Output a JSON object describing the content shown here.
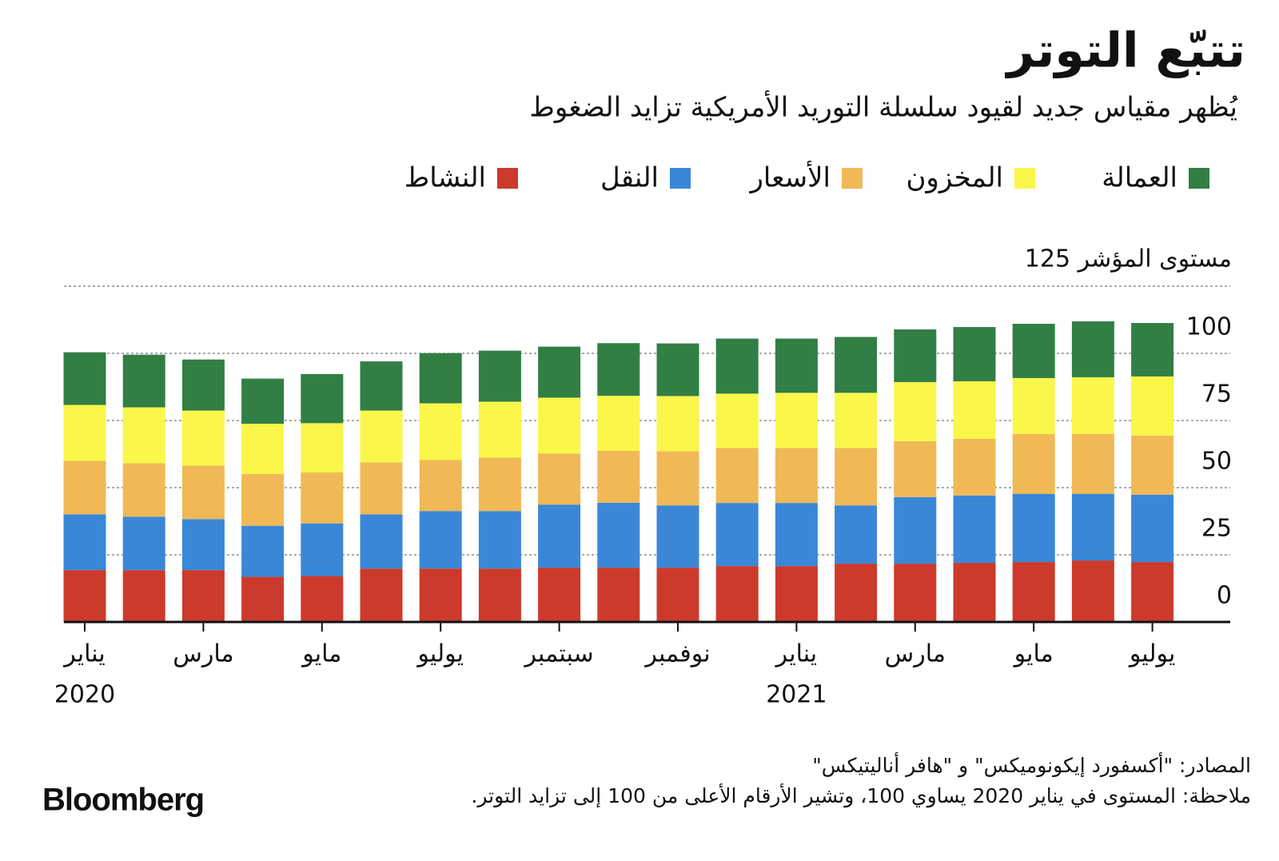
{
  "chart_data": {
    "type": "stacked_bar",
    "title": "تتبّع التوتر",
    "subtitle": "يُظهر مقياس جديد لقيود سلسلة التوريد الأمريكية تزايد الضغوط",
    "categories": [
      "يناير",
      null,
      "مارس",
      null,
      "مايو",
      null,
      "يوليو",
      null,
      "سبتمبر",
      null,
      "نوفمبر",
      null,
      "يناير",
      null,
      "مارس",
      null,
      "مايو",
      null,
      "يوليو"
    ],
    "category_years": [
      "2020",
      null,
      null,
      null,
      null,
      null,
      null,
      null,
      null,
      null,
      null,
      null,
      "2021",
      null,
      null,
      null,
      null,
      null,
      null
    ],
    "series": [
      {
        "name": "النشاط",
        "color": "#cc3a2b",
        "values": [
          19.3,
          19.3,
          19.3,
          16.8,
          17.1,
          19.9,
          19.9,
          19.9,
          20.2,
          20.2,
          20.2,
          20.8,
          20.8,
          21.7,
          21.7,
          22.0,
          22.3,
          22.9,
          22.3
        ]
      },
      {
        "name": "النقل",
        "color": "#3a87d8",
        "values": [
          20.8,
          19.9,
          19.0,
          19.0,
          19.6,
          20.2,
          21.4,
          21.4,
          23.5,
          24.2,
          23.2,
          23.5,
          23.5,
          21.7,
          24.8,
          25.1,
          25.4,
          24.8,
          25.1
        ]
      },
      {
        "name": "الأسعار",
        "color": "#f0b955",
        "values": [
          19.9,
          19.9,
          19.9,
          19.3,
          19.0,
          19.3,
          19.0,
          19.9,
          19.0,
          19.3,
          20.2,
          20.5,
          20.5,
          21.4,
          20.8,
          21.1,
          22.3,
          22.3,
          22.0
        ]
      },
      {
        "name": "المخزون",
        "color": "#fbf64a",
        "values": [
          20.8,
          20.8,
          20.5,
          18.7,
          18.3,
          19.3,
          21.1,
          20.8,
          20.8,
          20.5,
          20.5,
          20.2,
          20.5,
          20.5,
          22.0,
          21.4,
          20.8,
          21.1,
          22.0
        ]
      },
      {
        "name": "العمالة",
        "color": "#317f45",
        "values": [
          19.6,
          19.6,
          19.0,
          16.8,
          18.3,
          18.3,
          18.7,
          19.0,
          19.0,
          19.6,
          19.6,
          20.5,
          20.2,
          20.8,
          19.6,
          20.2,
          20.2,
          20.8,
          19.9
        ]
      }
    ],
    "ylim": [
      0,
      125
    ],
    "yticks": [
      0,
      25,
      50,
      75,
      100,
      {
        "value": 125,
        "label": "مستوى المؤشر 125"
      }
    ],
    "grid": true,
    "source": "المصادر: \"أكسفورد إيكونوميكس\" و \"هافر أناليتيكس\"",
    "note": "ملاحظة: المستوى في يناير 2020 يساوي 100، وتشير الأرقام الأعلى من 100 إلى تزايد التوتر.",
    "brand": "Bloomberg"
  }
}
